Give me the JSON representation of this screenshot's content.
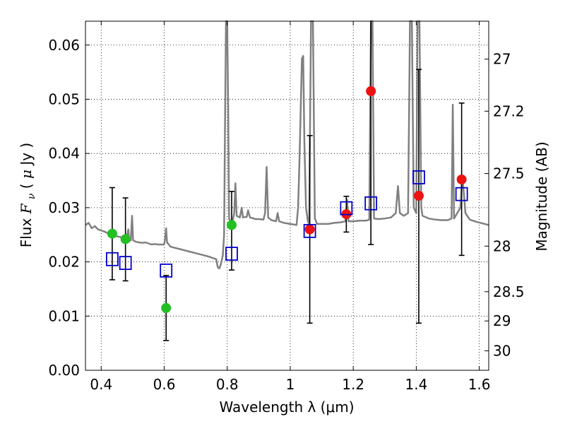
{
  "chart_data": {
    "type": "scatter",
    "title": "",
    "xlabel": "Wavelength  λ (μm)",
    "ylabel": "Flux  F_ν  ( μJy )",
    "ylabel_parts": [
      "Flux ",
      "F",
      "ν",
      " ( ",
      "μ",
      "Jy )"
    ],
    "y2label": "Magnitude (AB)",
    "xlim": [
      0.35,
      1.63
    ],
    "ylim": [
      0.0,
      0.0644
    ],
    "grid": true,
    "xticks": [
      0.4,
      0.6,
      0.8,
      1.0,
      1.2,
      1.4,
      1.6
    ],
    "xtick_labels": [
      "0.4",
      "0.6",
      "0.8",
      "1",
      "1.2",
      "1.4",
      "1.6"
    ],
    "yticks": [
      0.0,
      0.01,
      0.02,
      0.03,
      0.04,
      0.05,
      0.06
    ],
    "ytick_labels": [
      "0.00",
      "0.01",
      "0.02",
      "0.03",
      "0.04",
      "0.05",
      "0.06"
    ],
    "y2ticks": [
      {
        "label": "27",
        "flux": 0.0574
      },
      {
        "label": "27.2",
        "flux": 0.0478
      },
      {
        "label": "27.5",
        "flux": 0.0363
      },
      {
        "label": "28",
        "flux": 0.0229
      },
      {
        "label": "28.5",
        "flux": 0.0145
      },
      {
        "label": "29",
        "flux": 0.0091
      },
      {
        "label": "30",
        "flux": 0.0036
      }
    ],
    "series": [
      {
        "style": "filled-circle",
        "color": "#22c022",
        "points": [
          {
            "x": 0.435,
            "y": 0.0252,
            "ylo": 0.0167,
            "yhi": 0.0337
          },
          {
            "x": 0.477,
            "y": 0.0242,
            "ylo": 0.0165,
            "yhi": 0.0318
          },
          {
            "x": 0.606,
            "y": 0.0115,
            "ylo": 0.0055,
            "yhi": 0.0175
          },
          {
            "x": 0.814,
            "y": 0.0268,
            "ylo": 0.0185,
            "yhi": 0.033
          }
        ]
      },
      {
        "style": "filled-circle",
        "color": "#ee1111",
        "points": [
          {
            "x": 1.062,
            "y": 0.026,
            "ylo": 0.0087,
            "yhi": 0.0433
          },
          {
            "x": 1.178,
            "y": 0.0288,
            "ylo": 0.0255,
            "yhi": 0.0321
          },
          {
            "x": 1.256,
            "y": 0.0515,
            "ylo": 0.0232,
            "yhi": 0.0644
          },
          {
            "x": 1.408,
            "y": 0.0322,
            "ylo": 0.0087,
            "yhi": 0.0555
          },
          {
            "x": 1.544,
            "y": 0.0352,
            "ylo": 0.0212,
            "yhi": 0.0493
          }
        ]
      },
      {
        "style": "open-square",
        "color": "#0000cc",
        "points": [
          {
            "x": 0.435,
            "y": 0.0205
          },
          {
            "x": 0.477,
            "y": 0.0198
          },
          {
            "x": 0.606,
            "y": 0.0184
          },
          {
            "x": 0.814,
            "y": 0.0215
          },
          {
            "x": 1.062,
            "y": 0.0257
          },
          {
            "x": 1.178,
            "y": 0.0299
          },
          {
            "x": 1.256,
            "y": 0.0308
          },
          {
            "x": 1.408,
            "y": 0.0356
          },
          {
            "x": 1.544,
            "y": 0.0325
          }
        ]
      }
    ],
    "spectrum": {
      "color": "#808080",
      "points": [
        [
          0.35,
          0.0268
        ],
        [
          0.36,
          0.0272
        ],
        [
          0.37,
          0.0262
        ],
        [
          0.38,
          0.0266
        ],
        [
          0.39,
          0.026
        ],
        [
          0.4,
          0.0258
        ],
        [
          0.41,
          0.0256
        ],
        [
          0.42,
          0.0253
        ],
        [
          0.43,
          0.025
        ],
        [
          0.44,
          0.0249
        ],
        [
          0.45,
          0.0247
        ],
        [
          0.46,
          0.0246
        ],
        [
          0.47,
          0.0244
        ],
        [
          0.48,
          0.0243
        ],
        [
          0.486,
          0.026
        ],
        [
          0.489,
          0.0238
        ],
        [
          0.494,
          0.024
        ],
        [
          0.498,
          0.0285
        ],
        [
          0.501,
          0.024
        ],
        [
          0.51,
          0.0237
        ],
        [
          0.52,
          0.0236
        ],
        [
          0.53,
          0.0235
        ],
        [
          0.54,
          0.0236
        ],
        [
          0.55,
          0.0234
        ],
        [
          0.56,
          0.0232
        ],
        [
          0.57,
          0.0233
        ],
        [
          0.58,
          0.0232
        ],
        [
          0.59,
          0.0232
        ],
        [
          0.6,
          0.0232
        ],
        [
          0.603,
          0.0245
        ],
        [
          0.606,
          0.0262
        ],
        [
          0.609,
          0.0236
        ],
        [
          0.62,
          0.0228
        ],
        [
          0.64,
          0.0225
        ],
        [
          0.66,
          0.0222
        ],
        [
          0.68,
          0.0219
        ],
        [
          0.7,
          0.0216
        ],
        [
          0.72,
          0.0213
        ],
        [
          0.74,
          0.021
        ],
        [
          0.76,
          0.0206
        ],
        [
          0.765,
          0.0205
        ],
        [
          0.77,
          0.019
        ],
        [
          0.775,
          0.0188
        ],
        [
          0.78,
          0.0196
        ],
        [
          0.786,
          0.0212
        ],
        [
          0.79,
          0.025
        ],
        [
          0.793,
          0.045
        ],
        [
          0.796,
          0.0644
        ],
        [
          0.8,
          0.0644
        ],
        [
          0.803,
          0.048
        ],
        [
          0.806,
          0.028
        ],
        [
          0.812,
          0.0272
        ],
        [
          0.818,
          0.0278
        ],
        [
          0.822,
          0.029
        ],
        [
          0.826,
          0.0345
        ],
        [
          0.83,
          0.0285
        ],
        [
          0.84,
          0.0282
        ],
        [
          0.846,
          0.03
        ],
        [
          0.85,
          0.0282
        ],
        [
          0.862,
          0.0283
        ],
        [
          0.866,
          0.0295
        ],
        [
          0.872,
          0.0282
        ],
        [
          0.89,
          0.0279
        ],
        [
          0.9,
          0.0279
        ],
        [
          0.915,
          0.0278
        ],
        [
          0.92,
          0.029
        ],
        [
          0.925,
          0.0375
        ],
        [
          0.93,
          0.0282
        ],
        [
          0.94,
          0.0277
        ],
        [
          0.955,
          0.0275
        ],
        [
          0.96,
          0.029
        ],
        [
          0.965,
          0.0275
        ],
        [
          0.98,
          0.0272
        ],
        [
          1.0,
          0.027
        ],
        [
          1.02,
          0.0268
        ],
        [
          1.025,
          0.03
        ],
        [
          1.03,
          0.04
        ],
        [
          1.037,
          0.0575
        ],
        [
          1.041,
          0.058
        ],
        [
          1.045,
          0.042
        ],
        [
          1.05,
          0.03
        ],
        [
          1.056,
          0.0275
        ],
        [
          1.06,
          0.027
        ],
        [
          1.066,
          0.0644
        ],
        [
          1.072,
          0.0644
        ],
        [
          1.078,
          0.028
        ],
        [
          1.085,
          0.027
        ],
        [
          1.1,
          0.027
        ],
        [
          1.12,
          0.027
        ],
        [
          1.14,
          0.0272
        ],
        [
          1.16,
          0.0273
        ],
        [
          1.175,
          0.0275
        ],
        [
          1.18,
          0.0315
        ],
        [
          1.185,
          0.0275
        ],
        [
          1.2,
          0.0275
        ],
        [
          1.22,
          0.0276
        ],
        [
          1.24,
          0.0276
        ],
        [
          1.251,
          0.0278
        ],
        [
          1.256,
          0.0644
        ],
        [
          1.261,
          0.0644
        ],
        [
          1.266,
          0.028
        ],
        [
          1.28,
          0.0279
        ],
        [
          1.3,
          0.028
        ],
        [
          1.32,
          0.0282
        ],
        [
          1.335,
          0.029
        ],
        [
          1.342,
          0.034
        ],
        [
          1.348,
          0.029
        ],
        [
          1.36,
          0.0285
        ],
        [
          1.374,
          0.029
        ],
        [
          1.38,
          0.0644
        ],
        [
          1.386,
          0.0644
        ],
        [
          1.392,
          0.03
        ],
        [
          1.4,
          0.029
        ],
        [
          1.404,
          0.0644
        ],
        [
          1.41,
          0.0644
        ],
        [
          1.416,
          0.03
        ],
        [
          1.42,
          0.0285
        ],
        [
          1.44,
          0.028
        ],
        [
          1.46,
          0.0278
        ],
        [
          1.48,
          0.0277
        ],
        [
          1.5,
          0.0277
        ],
        [
          1.512,
          0.028
        ],
        [
          1.516,
          0.049
        ],
        [
          1.52,
          0.028
        ],
        [
          1.54,
          0.03
        ],
        [
          1.546,
          0.036
        ],
        [
          1.552,
          0.032
        ],
        [
          1.556,
          0.029
        ],
        [
          1.57,
          0.0278
        ],
        [
          1.59,
          0.0274
        ],
        [
          1.61,
          0.0271
        ],
        [
          1.63,
          0.0268
        ]
      ]
    }
  }
}
